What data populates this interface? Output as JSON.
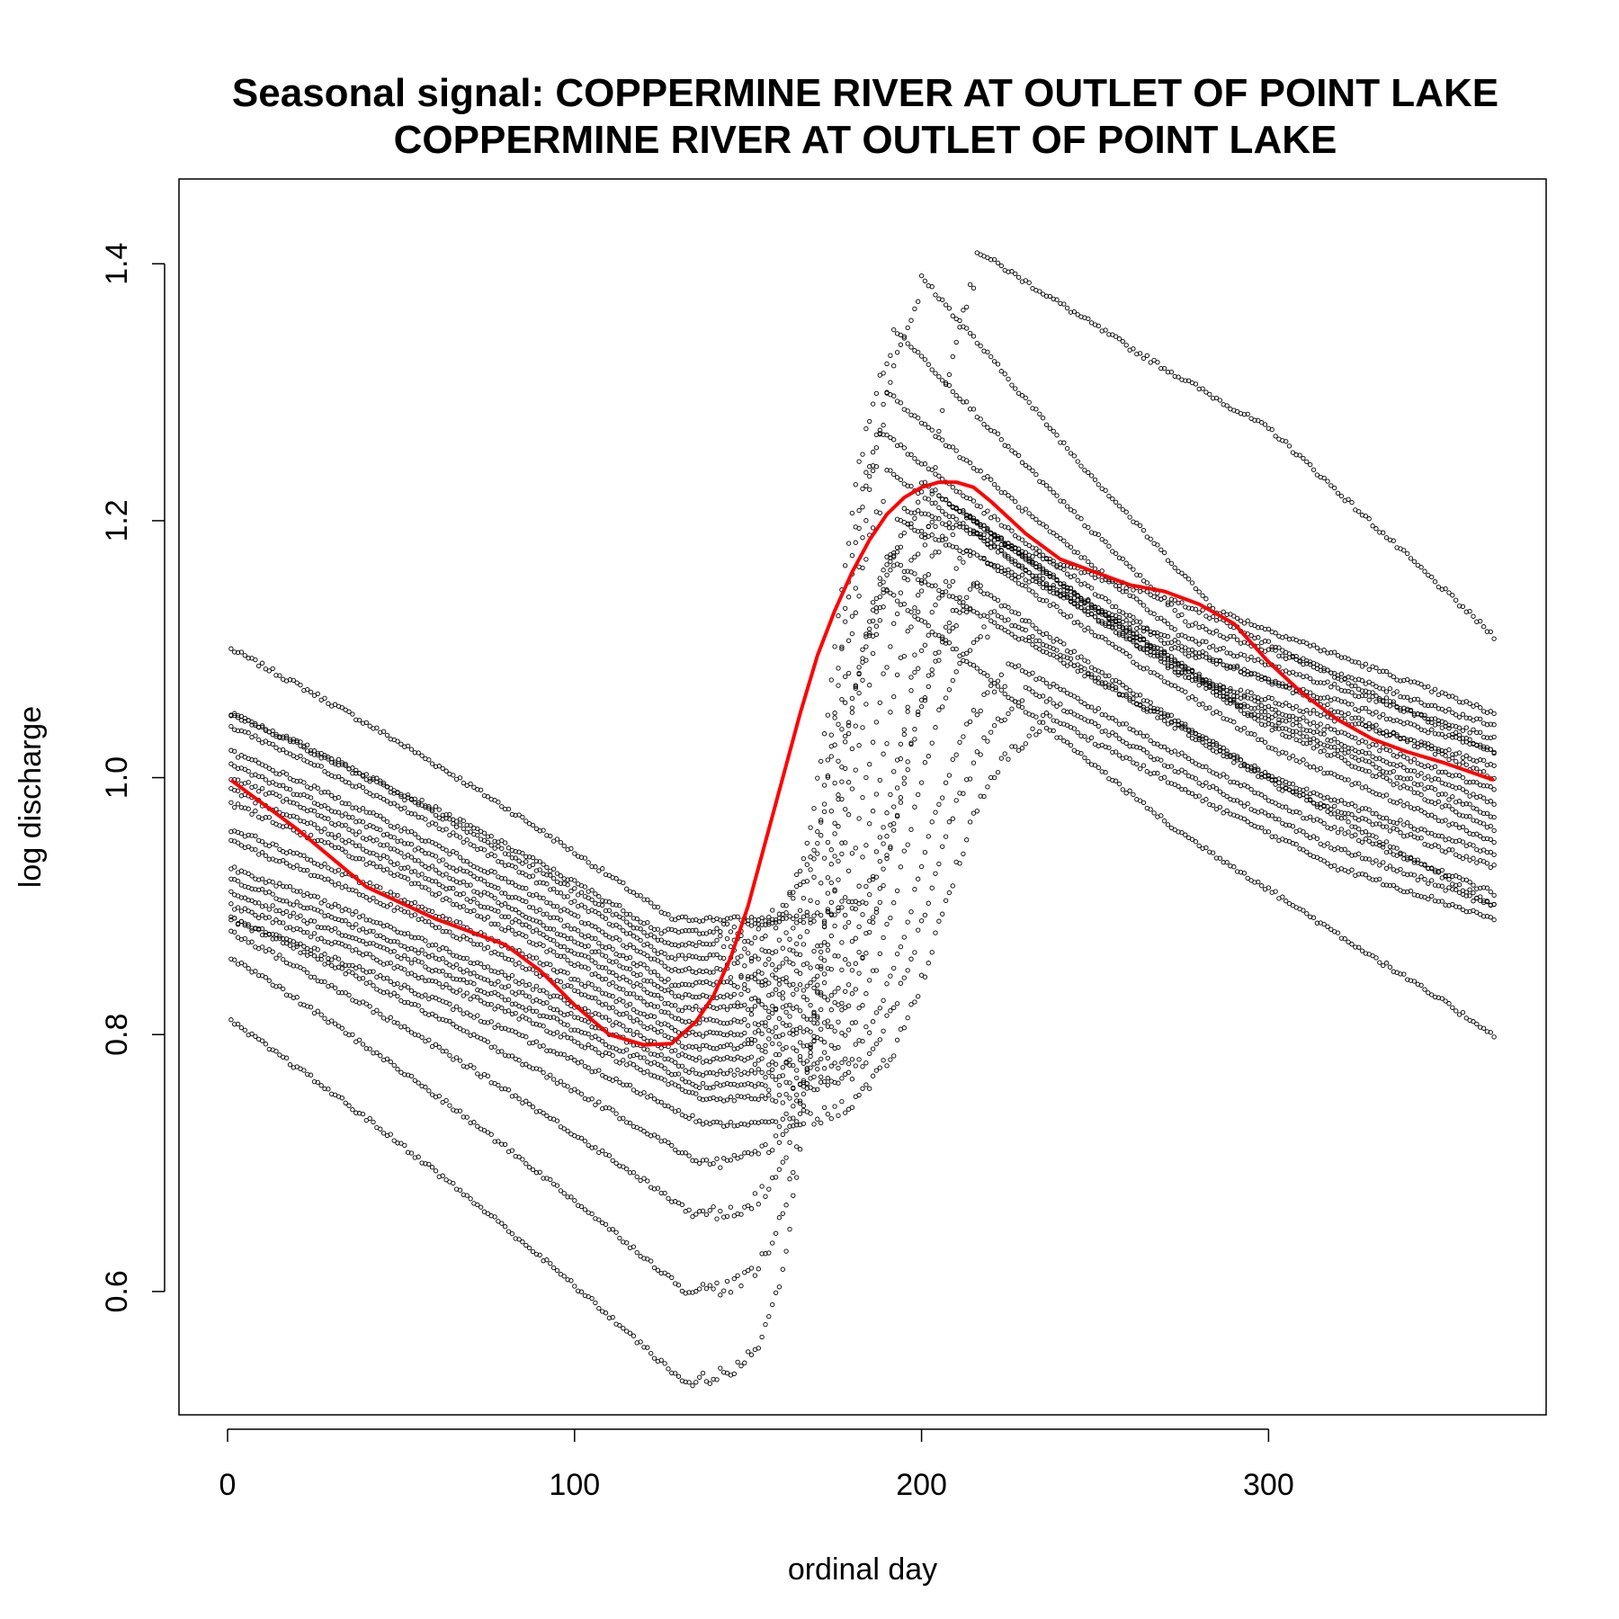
{
  "chart_data": {
    "type": "scatter",
    "title_lines": [
      "Seasonal signal: COPPERMINE RIVER AT OUTLET OF POINT LAKE",
      "COPPERMINE RIVER AT OUTLET OF POINT LAKE"
    ],
    "xlabel": "ordinal day",
    "ylabel": "log discharge",
    "xlim": [
      -14,
      380
    ],
    "ylim": [
      0.504,
      1.466
    ],
    "xticks": [
      0,
      100,
      200,
      300
    ],
    "xtick_labels": [
      "0",
      "100",
      "200",
      "300"
    ],
    "yticks": [
      0.6,
      0.8,
      1.0,
      1.2,
      1.4
    ],
    "ytick_labels": [
      "0.6",
      "0.8",
      "1.0",
      "1.2",
      "1.4"
    ],
    "grid": false,
    "legend": "none",
    "point_color": "#000000",
    "smooth_color": "#ff0000",
    "years": [
      {
        "start": 1.1,
        "trough": 0.89,
        "trough_day": 128,
        "onset": 180,
        "peak": 1.41,
        "peak_day": 216,
        "late": 1.27,
        "end": 1.11
      },
      {
        "start": 1.05,
        "trough": 0.88,
        "trough_day": 125,
        "onset": 157,
        "peak": 1.39,
        "peak_day": 200,
        "late": 1.13,
        "end": 1.05
      },
      {
        "start": 1.05,
        "trough": 0.87,
        "trough_day": 126,
        "onset": 155,
        "peak": 1.35,
        "peak_day": 192,
        "late": 1.12,
        "end": 1.04
      },
      {
        "start": 1.04,
        "trough": 0.86,
        "trough_day": 127,
        "onset": 158,
        "peak": 1.3,
        "peak_day": 190,
        "late": 1.11,
        "end": 1.03
      },
      {
        "start": 1.02,
        "trough": 0.85,
        "trough_day": 128,
        "onset": 159,
        "peak": 1.27,
        "peak_day": 188,
        "late": 1.1,
        "end": 1.02
      },
      {
        "start": 1.01,
        "trough": 0.84,
        "trough_day": 128,
        "onset": 160,
        "peak": 1.24,
        "peak_day": 190,
        "late": 1.08,
        "end": 1.01
      },
      {
        "start": 1.0,
        "trough": 0.83,
        "trough_day": 129,
        "onset": 161,
        "peak": 1.23,
        "peak_day": 200,
        "late": 1.07,
        "end": 0.99
      },
      {
        "start": 0.99,
        "trough": 0.82,
        "trough_day": 130,
        "onset": 162,
        "peak": 1.22,
        "peak_day": 205,
        "late": 1.06,
        "end": 0.98
      },
      {
        "start": 0.98,
        "trough": 0.81,
        "trough_day": 131,
        "onset": 163,
        "peak": 1.21,
        "peak_day": 210,
        "late": 1.05,
        "end": 0.97
      },
      {
        "start": 0.96,
        "trough": 0.8,
        "trough_day": 132,
        "onset": 164,
        "peak": 1.19,
        "peak_day": 215,
        "late": 1.04,
        "end": 0.96
      },
      {
        "start": 0.95,
        "trough": 0.79,
        "trough_day": 133,
        "onset": 165,
        "peak": 1.17,
        "peak_day": 218,
        "late": 1.02,
        "end": 0.95
      },
      {
        "start": 0.93,
        "trough": 0.78,
        "trough_day": 134,
        "onset": 166,
        "peak": 1.15,
        "peak_day": 215,
        "late": 1.0,
        "end": 0.94
      },
      {
        "start": 0.92,
        "trough": 0.77,
        "trough_day": 135,
        "onset": 168,
        "peak": 1.13,
        "peak_day": 220,
        "late": 0.99,
        "end": 0.93
      },
      {
        "start": 0.91,
        "trough": 0.76,
        "trough_day": 136,
        "onset": 170,
        "peak": 1.09,
        "peak_day": 225,
        "late": 0.97,
        "end": 0.91
      },
      {
        "start": 0.9,
        "trough": 0.75,
        "trough_day": 137,
        "onset": 171,
        "peak": 1.07,
        "peak_day": 230,
        "late": 0.95,
        "end": 0.9
      },
      {
        "start": 0.89,
        "trough": 0.73,
        "trough_day": 138,
        "onset": 172,
        "peak": 1.05,
        "peak_day": 235,
        "late": 0.93,
        "end": 0.89
      },
      {
        "start": 0.89,
        "trough": 0.7,
        "trough_day": 136,
        "onset": 155,
        "peak": 1.21,
        "peak_day": 195,
        "late": 1.13,
        "end": 1.02
      },
      {
        "start": 0.88,
        "trough": 0.66,
        "trough_day": 134,
        "onset": 152,
        "peak": 1.2,
        "peak_day": 193,
        "late": 1.1,
        "end": 1.0
      },
      {
        "start": 0.86,
        "trough": 0.6,
        "trough_day": 132,
        "onset": 150,
        "peak": 1.17,
        "peak_day": 190,
        "late": 1.04,
        "end": 0.9
      },
      {
        "start": 0.81,
        "trough": 0.53,
        "trough_day": 131,
        "onset": 148,
        "peak": 1.15,
        "peak_day": 188,
        "late": 0.96,
        "end": 0.8
      }
    ],
    "smooth_curve": {
      "x": [
        1,
        20,
        40,
        60,
        80,
        90,
        100,
        110,
        120,
        128,
        135,
        140,
        145,
        150,
        155,
        160,
        165,
        170,
        175,
        180,
        185,
        190,
        195,
        200,
        205,
        210,
        215,
        220,
        230,
        240,
        250,
        260,
        270,
        280,
        290,
        300,
        310,
        320,
        330,
        340,
        350,
        365
      ],
      "y": [
        0.998,
        0.96,
        0.915,
        0.89,
        0.87,
        0.85,
        0.823,
        0.8,
        0.792,
        0.793,
        0.81,
        0.83,
        0.86,
        0.9,
        0.95,
        1.0,
        1.05,
        1.095,
        1.13,
        1.16,
        1.185,
        1.205,
        1.218,
        1.226,
        1.23,
        1.23,
        1.226,
        1.215,
        1.19,
        1.17,
        1.16,
        1.15,
        1.145,
        1.135,
        1.12,
        1.09,
        1.065,
        1.045,
        1.03,
        1.02,
        1.012,
        0.998
      ]
    }
  }
}
